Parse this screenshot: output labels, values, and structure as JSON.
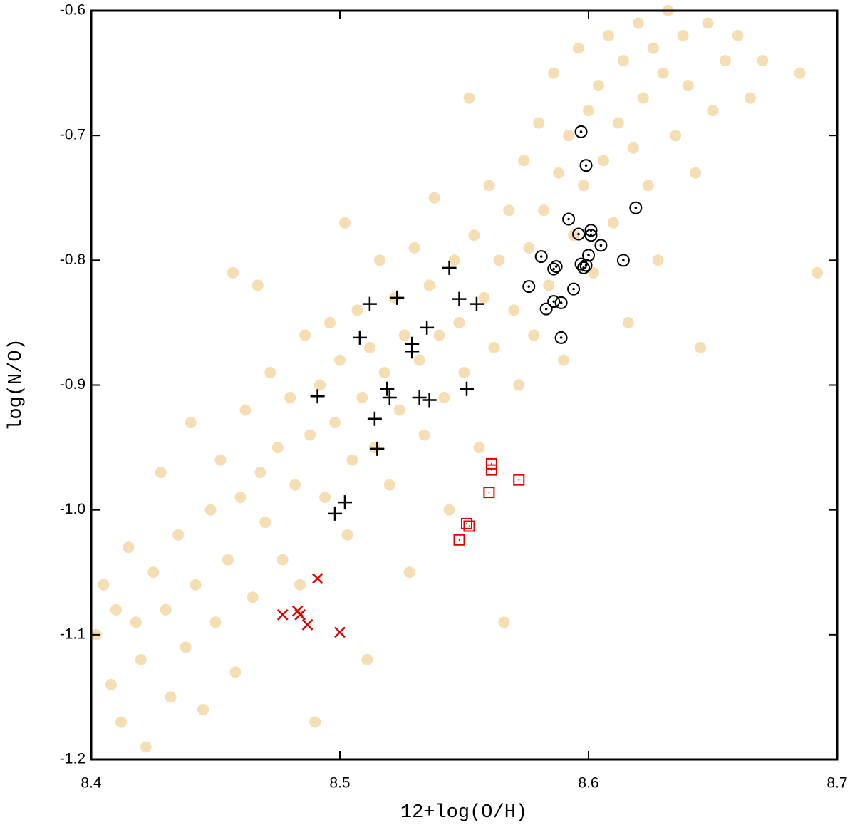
{
  "chart_data": {
    "type": "scatter",
    "xlabel": "12+log(O/H)",
    "ylabel": "log(N/O)",
    "xlim": [
      8.4,
      8.7
    ],
    "ylim": [
      -1.2,
      -0.6
    ],
    "xticks": [
      8.4,
      8.5,
      8.6,
      8.7
    ],
    "yticks": [
      -1.2,
      -1.1,
      {
        "value": -1,
        "label": "-1.0"
      },
      -0.9,
      -0.8,
      -0.7,
      -0.6
    ],
    "series": [
      {
        "color": "#f5deb3",
        "marker": "circle-filled",
        "x": [
          8.402,
          8.405,
          8.408,
          8.41,
          8.412,
          8.415,
          8.418,
          8.42,
          8.422,
          8.425,
          8.428,
          8.43,
          8.432,
          8.435,
          8.438,
          8.44,
          8.442,
          8.445,
          8.448,
          8.45,
          8.452,
          8.455,
          8.457,
          8.458,
          8.46,
          8.462,
          8.465,
          8.467,
          8.468,
          8.47,
          8.472,
          8.475,
          8.477,
          8.48,
          8.482,
          8.484,
          8.486,
          8.488,
          8.49,
          8.492,
          8.494,
          8.496,
          8.498,
          8.5,
          8.502,
          8.503,
          8.505,
          8.507,
          8.509,
          8.511,
          8.512,
          8.514,
          8.516,
          8.518,
          8.52,
          8.522,
          8.524,
          8.526,
          8.528,
          8.53,
          8.532,
          8.534,
          8.536,
          8.538,
          8.54,
          8.542,
          8.544,
          8.546,
          8.548,
          8.55,
          8.552,
          8.554,
          8.556,
          8.558,
          8.56,
          8.562,
          8.564,
          8.566,
          8.568,
          8.57,
          8.572,
          8.574,
          8.576,
          8.578,
          8.58,
          8.582,
          8.584,
          8.586,
          8.588,
          8.59,
          8.592,
          8.594,
          8.596,
          8.598,
          8.6,
          8.602,
          8.604,
          8.606,
          8.608,
          8.61,
          8.612,
          8.614,
          8.616,
          8.618,
          8.62,
          8.622,
          8.624,
          8.626,
          8.628,
          8.63,
          8.632,
          8.635,
          8.638,
          8.64,
          8.643,
          8.645,
          8.648,
          8.65,
          8.655,
          8.66,
          8.665,
          8.67,
          8.685,
          8.692
        ],
        "y": [
          -1.1,
          -1.06,
          -1.14,
          -1.08,
          -1.17,
          -1.03,
          -1.09,
          -1.12,
          -1.19,
          -1.05,
          -0.97,
          -1.08,
          -1.15,
          -1.02,
          -1.11,
          -0.93,
          -1.06,
          -1.16,
          -1.0,
          -1.09,
          -0.96,
          -1.04,
          -0.81,
          -1.13,
          -0.99,
          -0.92,
          -1.07,
          -0.82,
          -0.97,
          -1.01,
          -0.89,
          -0.95,
          -1.04,
          -0.91,
          -0.98,
          -1.06,
          -0.86,
          -0.94,
          -1.17,
          -0.9,
          -0.99,
          -0.85,
          -0.93,
          -0.88,
          -0.77,
          -1.02,
          -0.96,
          -0.84,
          -0.91,
          -1.12,
          -0.87,
          -0.95,
          -0.8,
          -0.89,
          -0.98,
          -0.83,
          -0.92,
          -0.86,
          -1.05,
          -0.79,
          -0.88,
          -0.94,
          -0.82,
          -0.75,
          -0.86,
          -0.91,
          -1.0,
          -0.8,
          -0.85,
          -0.89,
          -0.67,
          -0.78,
          -0.95,
          -0.83,
          -0.74,
          -0.87,
          -0.8,
          -1.09,
          -0.76,
          -0.84,
          -0.9,
          -0.72,
          -0.79,
          -0.86,
          -0.69,
          -0.76,
          -0.82,
          -0.65,
          -0.73,
          -0.88,
          -0.7,
          -0.78,
          -0.63,
          -0.74,
          -0.68,
          -0.81,
          -0.66,
          -0.72,
          -0.62,
          -0.77,
          -0.69,
          -0.64,
          -0.85,
          -0.71,
          -0.61,
          -0.67,
          -0.74,
          -0.63,
          -0.8,
          -0.65,
          -0.6,
          -0.7,
          -0.62,
          -0.66,
          -0.73,
          -0.87,
          -0.61,
          -0.68,
          -0.64,
          -0.62,
          -0.67,
          -0.64,
          -0.65,
          -0.81
        ]
      },
      {
        "color": "#000000",
        "marker": "plus",
        "x": [
          8.544,
          8.512,
          8.523,
          8.548,
          8.555,
          8.535,
          8.508,
          8.529,
          8.529,
          8.491,
          8.519,
          8.52,
          8.532,
          8.536,
          8.551,
          8.514,
          8.515,
          8.502,
          8.498
        ],
        "y": [
          -0.806,
          -0.835,
          -0.83,
          -0.831,
          -0.835,
          -0.854,
          -0.862,
          -0.867,
          -0.873,
          -0.909,
          -0.903,
          -0.91,
          -0.91,
          -0.912,
          -0.903,
          -0.927,
          -0.951,
          -0.994,
          -1.003
        ]
      },
      {
        "color": "#000000",
        "marker": "circle-dot",
        "x": [
          8.597,
          8.599,
          8.619,
          8.592,
          8.596,
          8.601,
          8.601,
          8.605,
          8.6,
          8.581,
          8.614,
          8.597,
          8.599,
          8.586,
          8.587,
          8.598,
          8.576,
          8.594,
          8.586,
          8.589,
          8.583,
          8.589
        ],
        "y": [
          -0.697,
          -0.724,
          -0.758,
          -0.767,
          -0.779,
          -0.776,
          -0.78,
          -0.788,
          -0.796,
          -0.797,
          -0.8,
          -0.803,
          -0.804,
          -0.807,
          -0.805,
          -0.806,
          -0.821,
          -0.823,
          -0.833,
          -0.834,
          -0.839,
          -0.862
        ]
      },
      {
        "color": "#e00000",
        "marker": "square-dot",
        "x": [
          8.561,
          8.561,
          8.572,
          8.56,
          8.551,
          8.552,
          8.548
        ],
        "y": [
          -0.963,
          -0.968,
          -0.976,
          -0.986,
          -1.011,
          -1.013,
          -1.024
        ]
      },
      {
        "color": "#e00000",
        "marker": "x",
        "x": [
          8.491,
          8.477,
          8.483,
          8.484,
          8.487,
          8.5
        ],
        "y": [
          -1.055,
          -1.084,
          -1.081,
          -1.084,
          -1.092,
          -1.098
        ]
      }
    ]
  }
}
